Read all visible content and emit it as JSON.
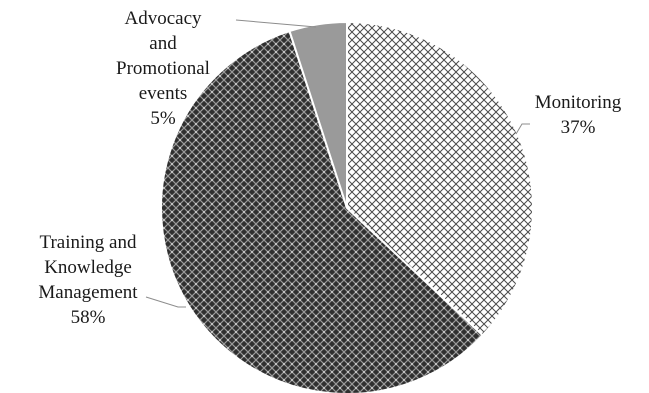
{
  "chart_data": {
    "type": "pie",
    "slices": [
      {
        "label": "Monitoring",
        "value": 37,
        "value_label": "37%",
        "pattern": "crosshatch-light"
      },
      {
        "label": "Training and Knowledge Management",
        "value": 58,
        "value_label": "58%",
        "pattern": "crosshatch-dark"
      },
      {
        "label": "Advocacy and Promotional events",
        "value": 5,
        "value_label": "5%",
        "pattern": "solid-gray"
      }
    ],
    "start_angle": "top",
    "direction": "clockwise",
    "legend": "none",
    "colors": {
      "dark": "#3a3a3a",
      "light": "#ffffff",
      "gray": "#9a9a9a",
      "edge": "#ffffff"
    }
  }
}
